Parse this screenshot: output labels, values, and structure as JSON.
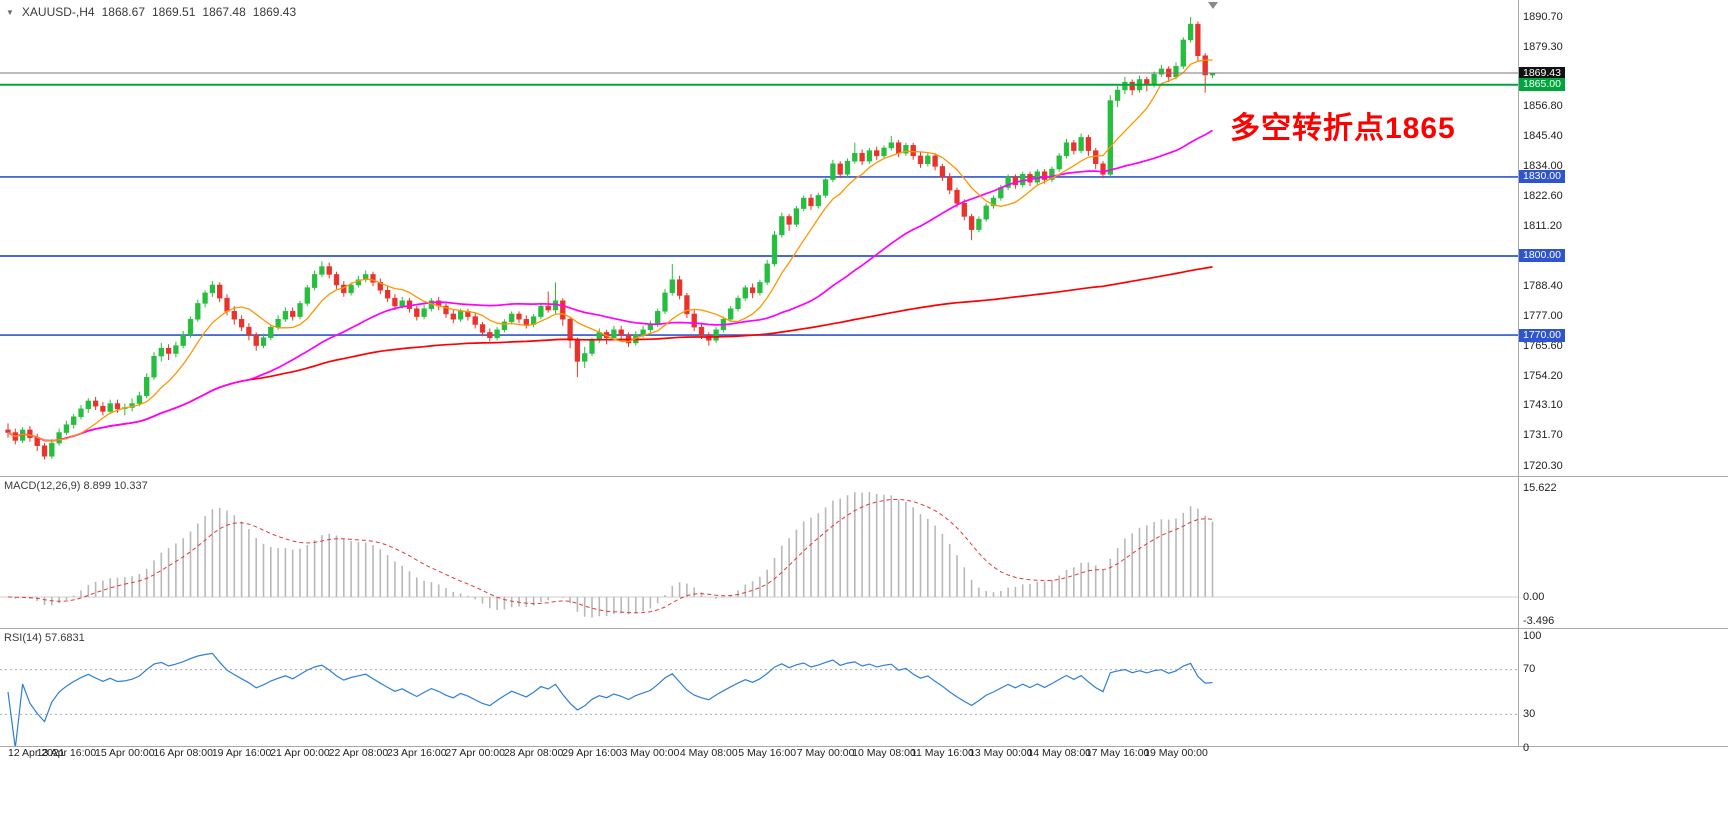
{
  "header": {
    "collapse_icon": "▼",
    "symbol": "XAUUSD-,H4",
    "ohlc": {
      "open": "1868.67",
      "high": "1869.51",
      "low": "1867.48",
      "close": "1869.43"
    }
  },
  "annotation": {
    "text": "多空转折点1865",
    "color": "#FF0000"
  },
  "macd_panel": {
    "label": "MACD(12,26,9) 8.899 10.337",
    "ticks": [
      {
        "text": "15.622",
        "v": 15.622
      },
      {
        "text": "0.00",
        "v": 0
      },
      {
        "text": "-3.496",
        "v": -3.496
      }
    ]
  },
  "rsi_panel": {
    "label": "RSI(14) 57.6831",
    "ticks": [
      {
        "text": "100",
        "v": 100
      },
      {
        "text": "70",
        "v": 70
      },
      {
        "text": "30",
        "v": 30
      },
      {
        "text": "0",
        "v": 0
      }
    ],
    "guide_levels": [
      70,
      30
    ]
  },
  "price_axis": {
    "ticks": [
      {
        "text": "1890.70",
        "price": 1890.7
      },
      {
        "text": "1879.30",
        "price": 1879.3
      },
      {
        "text": "1856.80",
        "price": 1856.8
      },
      {
        "text": "1845.40",
        "price": 1845.4
      },
      {
        "text": "1834.00",
        "price": 1834.0
      },
      {
        "text": "1822.60",
        "price": 1822.6
      },
      {
        "text": "1811.20",
        "price": 1811.2
      },
      {
        "text": "1788.40",
        "price": 1788.4
      },
      {
        "text": "1777.00",
        "price": 1777.0
      },
      {
        "text": "1765.60",
        "price": 1765.6
      },
      {
        "text": "1754.20",
        "price": 1754.2
      },
      {
        "text": "1743.10",
        "price": 1743.1
      },
      {
        "text": "1731.70",
        "price": 1731.7
      },
      {
        "text": "1720.30",
        "price": 1720.3
      }
    ],
    "badges": [
      {
        "text": "1869.43",
        "price": 1869.43,
        "bg": "#111111"
      },
      {
        "text": "1865.00",
        "price": 1865.0,
        "bg": "#00A53C"
      },
      {
        "text": "1830.00",
        "price": 1830.0,
        "bg": "#2F55CE"
      },
      {
        "text": "1800.00",
        "price": 1800.0,
        "bg": "#2F55CE"
      },
      {
        "text": "1770.00",
        "price": 1770.0,
        "bg": "#2F55CE"
      }
    ]
  },
  "time_axis": {
    "labels": [
      "12 Apr 2021",
      "13 Apr 16:00",
      "15 Apr 00:00",
      "16 Apr 08:00",
      "19 Apr 16:00",
      "21 Apr 00:00",
      "22 Apr 08:00",
      "23 Apr 16:00",
      "27 Apr 00:00",
      "28 Apr 08:00",
      "29 Apr 16:00",
      "3 May 00:00",
      "4 May 08:00",
      "5 May 16:00",
      "7 May 00:00",
      "10 May 08:00",
      "11 May 16:00",
      "13 May 00:00",
      "14 May 08:00",
      "17 May 16:00",
      "19 May 00:00"
    ]
  },
  "colors": {
    "up": "#27BE3F",
    "down": "#E8332C",
    "ma_fast": "#FF9600",
    "ma_mid": "#FF00FF",
    "ma_slow": "#FF0000",
    "macd_hist": "#B8B8B8",
    "macd_zero": "#CFCFCF",
    "macd_signal": "#E03A3A",
    "rsi_line": "#2F7FD6",
    "rsi_guide": "#ABABAB",
    "level_blue": "#2F55CE",
    "level_green": "#00A53C",
    "bid_line": "#777777"
  },
  "chart_data": [
    {
      "type": "candlestick",
      "title": "XAUUSD-,H4",
      "symbol": "XAUUSD",
      "timeframe": "H4",
      "ylim": [
        1720.3,
        1890.7
      ],
      "y_ticks": [
        1890.7,
        1879.3,
        1869.43,
        1865.0,
        1856.8,
        1845.4,
        1834.0,
        1830.0,
        1822.6,
        1811.2,
        1800.0,
        1788.4,
        1777.0,
        1770.0,
        1765.6,
        1754.2,
        1743.1,
        1731.7,
        1720.3
      ],
      "x_labels": [
        "12 Apr 2021",
        "13 Apr 16:00",
        "15 Apr 00:00",
        "16 Apr 08:00",
        "19 Apr 16:00",
        "21 Apr 00:00",
        "22 Apr 08:00",
        "23 Apr 16:00",
        "27 Apr 00:00",
        "28 Apr 08:00",
        "29 Apr 16:00",
        "3 May 00:00",
        "4 May 08:00",
        "5 May 16:00",
        "7 May 00:00",
        "10 May 08:00",
        "11 May 16:00",
        "13 May 00:00",
        "14 May 08:00",
        "17 May 16:00",
        "19 May 00:00"
      ],
      "bars_per_x_label": 8,
      "bid": 1869.43,
      "last_quote": {
        "open": 1868.67,
        "high": 1869.51,
        "low": 1867.48,
        "close": 1869.43
      },
      "horizontal_levels": [
        1865.0,
        1830.0,
        1800.0,
        1770.0
      ],
      "moving_average_periods": {
        "fast": 8,
        "mid": 34,
        "slow": 400
      },
      "ohlc": [
        [
          1734,
          1736.5,
          1731,
          1733
        ],
        [
          1733,
          1734.5,
          1728.5,
          1730
        ],
        [
          1730,
          1735,
          1729,
          1734
        ],
        [
          1734,
          1735.5,
          1729.5,
          1731
        ],
        [
          1731,
          1732.5,
          1726,
          1728
        ],
        [
          1728,
          1729,
          1722.8,
          1724
        ],
        [
          1724,
          1730.5,
          1723,
          1729
        ],
        [
          1729,
          1734.5,
          1728,
          1733
        ],
        [
          1733,
          1737.5,
          1732,
          1736
        ],
        [
          1736,
          1740,
          1734.5,
          1739
        ],
        [
          1739,
          1743.5,
          1738,
          1742
        ],
        [
          1742,
          1746,
          1740.5,
          1745
        ],
        [
          1745,
          1746.5,
          1741.5,
          1743
        ],
        [
          1743,
          1744.5,
          1739.5,
          1741
        ],
        [
          1741,
          1745.5,
          1740,
          1744
        ],
        [
          1744,
          1745.5,
          1740.5,
          1742
        ],
        [
          1742,
          1744,
          1739.5,
          1742.5
        ],
        [
          1742.5,
          1746,
          1741,
          1744
        ],
        [
          1744,
          1748.5,
          1743,
          1747
        ],
        [
          1747,
          1755.5,
          1746,
          1754
        ],
        [
          1754,
          1763.5,
          1753,
          1762
        ],
        [
          1762,
          1767,
          1760,
          1765
        ],
        [
          1765,
          1766.5,
          1760.5,
          1763
        ],
        [
          1763,
          1767.5,
          1761.5,
          1766
        ],
        [
          1766,
          1771.5,
          1765,
          1770
        ],
        [
          1770,
          1777,
          1769,
          1776
        ],
        [
          1776,
          1783.5,
          1775,
          1782
        ],
        [
          1782,
          1787,
          1780.5,
          1786
        ],
        [
          1786,
          1790.5,
          1784.5,
          1789
        ],
        [
          1789,
          1790,
          1782.5,
          1784
        ],
        [
          1784,
          1785.5,
          1777.5,
          1779
        ],
        [
          1779,
          1781,
          1774,
          1776
        ],
        [
          1776,
          1777.5,
          1771.5,
          1773
        ],
        [
          1773,
          1774.5,
          1768,
          1770
        ],
        [
          1770,
          1771,
          1764,
          1766
        ],
        [
          1766,
          1770.5,
          1765,
          1769
        ],
        [
          1769,
          1774,
          1768,
          1773
        ],
        [
          1773,
          1777.5,
          1772,
          1776
        ],
        [
          1776,
          1780.5,
          1775,
          1779
        ],
        [
          1779,
          1780.5,
          1775.5,
          1777
        ],
        [
          1777,
          1783,
          1776,
          1782
        ],
        [
          1782,
          1789,
          1781,
          1788
        ],
        [
          1788,
          1794.5,
          1787,
          1793
        ],
        [
          1793,
          1798,
          1792,
          1796
        ],
        [
          1796,
          1797.5,
          1791.5,
          1793
        ],
        [
          1793,
          1794,
          1787.5,
          1789
        ],
        [
          1789,
          1790.5,
          1784.5,
          1786
        ],
        [
          1786,
          1790,
          1785,
          1789
        ],
        [
          1789,
          1792.5,
          1788,
          1791
        ],
        [
          1791,
          1794.5,
          1790,
          1793
        ],
        [
          1793,
          1794,
          1788.5,
          1790
        ],
        [
          1790,
          1791.5,
          1785.5,
          1787
        ],
        [
          1787,
          1788.5,
          1782.5,
          1784
        ],
        [
          1784,
          1785.5,
          1779.5,
          1781
        ],
        [
          1781,
          1784.5,
          1780,
          1783
        ],
        [
          1783,
          1784,
          1778.5,
          1780
        ],
        [
          1780,
          1781,
          1775.5,
          1777
        ],
        [
          1777,
          1781.5,
          1776,
          1780
        ],
        [
          1780,
          1784,
          1779,
          1783
        ],
        [
          1783,
          1784.5,
          1779.5,
          1781
        ],
        [
          1781,
          1782,
          1776.5,
          1778
        ],
        [
          1778,
          1779.5,
          1774.5,
          1776
        ],
        [
          1776,
          1780,
          1775,
          1779
        ],
        [
          1779,
          1780,
          1775.5,
          1777
        ],
        [
          1777,
          1778.5,
          1772.5,
          1774
        ],
        [
          1774,
          1775,
          1769.5,
          1771
        ],
        [
          1771,
          1772.5,
          1767.5,
          1769
        ],
        [
          1769,
          1773,
          1768,
          1772
        ],
        [
          1772,
          1776,
          1771,
          1775
        ],
        [
          1775,
          1779,
          1774,
          1778
        ],
        [
          1778,
          1779,
          1774.5,
          1776
        ],
        [
          1776,
          1777.5,
          1772.5,
          1774
        ],
        [
          1774,
          1778,
          1773,
          1777
        ],
        [
          1777,
          1782,
          1776,
          1781
        ],
        [
          1781,
          1786.5,
          1778.5,
          1779.5
        ],
        [
          1779.5,
          1790,
          1778,
          1783
        ],
        [
          1783,
          1784,
          1773.5,
          1776
        ],
        [
          1776,
          1777,
          1765,
          1768
        ],
        [
          1768,
          1769,
          1754,
          1760
        ],
        [
          1760,
          1765.5,
          1757.5,
          1763
        ],
        [
          1763,
          1769,
          1762,
          1768
        ],
        [
          1768,
          1772.5,
          1767,
          1771
        ],
        [
          1771,
          1772,
          1766.5,
          1769
        ],
        [
          1769,
          1773.5,
          1768,
          1772
        ],
        [
          1772,
          1773.5,
          1768,
          1770
        ],
        [
          1770,
          1771,
          1765.5,
          1767
        ],
        [
          1767,
          1771.5,
          1766,
          1770
        ],
        [
          1770,
          1773.5,
          1769,
          1772
        ],
        [
          1772,
          1775.5,
          1771,
          1774
        ],
        [
          1774,
          1780,
          1773,
          1779
        ],
        [
          1779,
          1787.5,
          1778,
          1786
        ],
        [
          1786,
          1797,
          1785,
          1791
        ],
        [
          1791,
          1792.5,
          1783.5,
          1785
        ],
        [
          1785,
          1786,
          1776.5,
          1778
        ],
        [
          1778,
          1779.5,
          1771.5,
          1773
        ],
        [
          1773,
          1774.5,
          1768.5,
          1770
        ],
        [
          1770,
          1771,
          1766,
          1768
        ],
        [
          1768,
          1773,
          1767,
          1772
        ],
        [
          1772,
          1777,
          1771,
          1776
        ],
        [
          1776,
          1781,
          1775,
          1780
        ],
        [
          1780,
          1785,
          1779,
          1784
        ],
        [
          1784,
          1789,
          1783,
          1788
        ],
        [
          1788,
          1789.5,
          1784,
          1786
        ],
        [
          1786,
          1791,
          1785,
          1790
        ],
        [
          1790,
          1798.5,
          1789,
          1797
        ],
        [
          1797,
          1809.5,
          1796,
          1808
        ],
        [
          1808,
          1816.5,
          1807,
          1815
        ],
        [
          1815,
          1816,
          1809.5,
          1812
        ],
        [
          1812,
          1819,
          1811,
          1818
        ],
        [
          1818,
          1823,
          1817,
          1822
        ],
        [
          1822,
          1823.5,
          1817.5,
          1819
        ],
        [
          1819,
          1824,
          1818,
          1823
        ],
        [
          1823,
          1830,
          1822,
          1829
        ],
        [
          1829,
          1836.5,
          1828,
          1835
        ],
        [
          1835,
          1836,
          1829.5,
          1831
        ],
        [
          1831,
          1837,
          1830,
          1836
        ],
        [
          1836,
          1843,
          1835,
          1839
        ],
        [
          1839,
          1840.5,
          1834.5,
          1836
        ],
        [
          1836,
          1841,
          1835,
          1840
        ],
        [
          1840,
          1841.5,
          1836.5,
          1838
        ],
        [
          1838,
          1842,
          1837,
          1841
        ],
        [
          1841,
          1845.5,
          1840,
          1843
        ],
        [
          1843,
          1844,
          1837.5,
          1839
        ],
        [
          1839,
          1843,
          1838,
          1842
        ],
        [
          1842,
          1843,
          1836.5,
          1838
        ],
        [
          1838,
          1839.5,
          1833.5,
          1835
        ],
        [
          1835,
          1839,
          1834,
          1838
        ],
        [
          1838,
          1839,
          1832.5,
          1834
        ],
        [
          1834,
          1835,
          1828.5,
          1830
        ],
        [
          1830,
          1831.5,
          1823.5,
          1825
        ],
        [
          1825,
          1826,
          1818.5,
          1820
        ],
        [
          1820,
          1821.5,
          1813.5,
          1815
        ],
        [
          1815,
          1816,
          1806,
          1810
        ],
        [
          1810,
          1815,
          1809,
          1814
        ],
        [
          1814,
          1820,
          1813,
          1819
        ],
        [
          1819,
          1823,
          1818,
          1822
        ],
        [
          1822,
          1827,
          1821,
          1826
        ],
        [
          1826,
          1831,
          1825,
          1830
        ],
        [
          1830,
          1831,
          1825.5,
          1827
        ],
        [
          1827,
          1832,
          1826,
          1831
        ],
        [
          1831,
          1832,
          1826.5,
          1828
        ],
        [
          1828,
          1833,
          1827,
          1832
        ],
        [
          1832,
          1833,
          1827.5,
          1829
        ],
        [
          1829,
          1834,
          1828,
          1833
        ],
        [
          1833,
          1839,
          1832,
          1838
        ],
        [
          1838,
          1844.5,
          1837,
          1843
        ],
        [
          1843,
          1844,
          1838.5,
          1840
        ],
        [
          1840,
          1846.5,
          1839,
          1845
        ],
        [
          1845,
          1846,
          1838,
          1840
        ],
        [
          1840,
          1841,
          1833,
          1835
        ],
        [
          1835,
          1836,
          1829.5,
          1831
        ],
        [
          1831,
          1861,
          1830,
          1859
        ],
        [
          1859,
          1864.5,
          1856.5,
          1863
        ],
        [
          1863,
          1868,
          1861.5,
          1866
        ],
        [
          1866,
          1867,
          1861,
          1863
        ],
        [
          1863,
          1868.5,
          1862,
          1867
        ],
        [
          1867,
          1868,
          1862.5,
          1865
        ],
        [
          1865,
          1870,
          1864,
          1869
        ],
        [
          1869,
          1872.5,
          1868,
          1871
        ],
        [
          1871,
          1872,
          1866,
          1868
        ],
        [
          1868,
          1873.5,
          1867,
          1872
        ],
        [
          1872,
          1883,
          1871,
          1882
        ],
        [
          1882,
          1890.7,
          1881,
          1888
        ],
        [
          1888,
          1889,
          1874,
          1876
        ],
        [
          1876,
          1877,
          1862,
          1868.7
        ],
        [
          1868.67,
          1869.51,
          1867.48,
          1869.43
        ]
      ]
    },
    {
      "type": "bar",
      "name": "MACD(12,26,9)",
      "current_macd": 8.899,
      "current_signal": 10.337,
      "ylim": [
        -3.496,
        15.622
      ]
    },
    {
      "type": "line",
      "name": "RSI(14)",
      "current": 57.6831,
      "ylim": [
        0,
        100
      ],
      "guide_levels": [
        70,
        30
      ]
    }
  ]
}
